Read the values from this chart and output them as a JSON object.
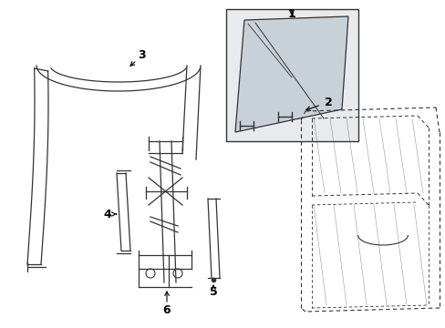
{
  "background_color": "#ffffff",
  "line_color": "#333333",
  "label_color": "#000000",
  "box_fill": "#e8eaed",
  "door_fill": "#f5f5f5",
  "fig_w": 4.89,
  "fig_h": 3.6,
  "dpi": 100
}
